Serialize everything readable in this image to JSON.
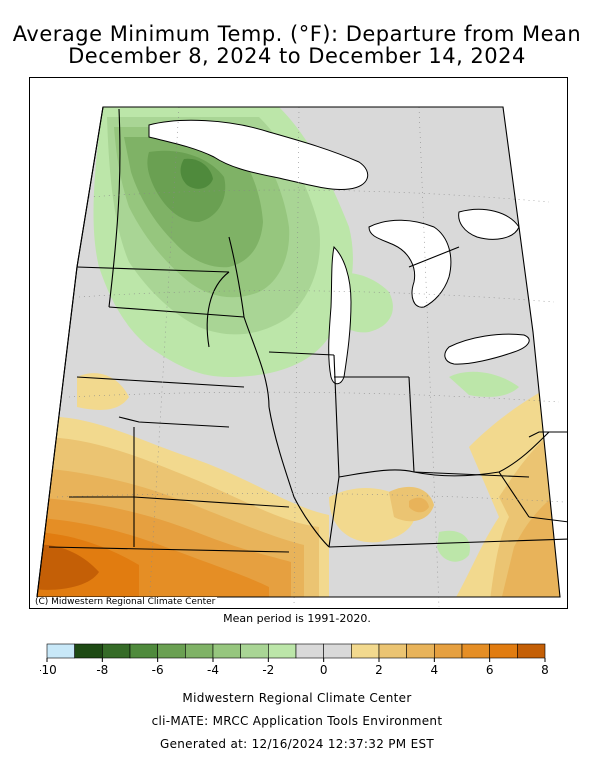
{
  "title_line1": "Average Minimum Temp. (°F): Departure from Mean",
  "title_line2": "December 8, 2024 to December 14, 2024",
  "map": {
    "credit": "(C) Midwestern Regional Climate Center",
    "mean_period": "Mean period is 1991-2020."
  },
  "legend": {
    "bins": [
      {
        "from": -10,
        "to": -9,
        "color": "#c8e8f8"
      },
      {
        "from": -9,
        "to": -8,
        "color": "#1e4a14"
      },
      {
        "from": -8,
        "to": -7,
        "color": "#356b27"
      },
      {
        "from": -7,
        "to": -6,
        "color": "#4f8a3c"
      },
      {
        "from": -6,
        "to": -5,
        "color": "#6aa052"
      },
      {
        "from": -5,
        "to": -4,
        "color": "#7fb266"
      },
      {
        "from": -4,
        "to": -3,
        "color": "#96c67e"
      },
      {
        "from": -3,
        "to": -2,
        "color": "#a9d595"
      },
      {
        "from": -2,
        "to": -1,
        "color": "#bce6a9"
      },
      {
        "from": -1,
        "to": 0,
        "color": "#d9d9d9"
      },
      {
        "from": 0,
        "to": 1,
        "color": "#d9d9d9"
      },
      {
        "from": 1,
        "to": 2,
        "color": "#f2d98e"
      },
      {
        "from": 2,
        "to": 3,
        "color": "#ebc472"
      },
      {
        "from": 3,
        "to": 4,
        "color": "#e8b35a"
      },
      {
        "from": 4,
        "to": 5,
        "color": "#e6a040"
      },
      {
        "from": 5,
        "to": 6,
        "color": "#e58e25"
      },
      {
        "from": 6,
        "to": 7,
        "color": "#e17c10"
      },
      {
        "from": 7,
        "to": 8,
        "color": "#c45f06"
      }
    ],
    "tick_labels": [
      "-10",
      "-8",
      "-6",
      "-4",
      "-2",
      "0",
      "2",
      "4",
      "6",
      "8"
    ]
  },
  "footer": {
    "line1": "Midwestern Regional Climate Center",
    "line2": "cli-MATE: MRCC Application Tools Environment",
    "line3": "Generated at: 12/16/2024 12:37:32 PM EST"
  }
}
